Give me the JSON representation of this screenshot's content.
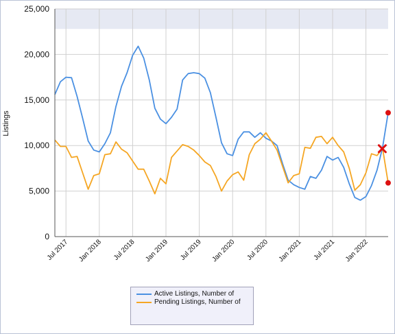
{
  "chart_data": {
    "type": "line",
    "title": "",
    "xlabel": "",
    "ylabel": "Listings",
    "ylim": [
      0,
      25000
    ],
    "yticks": [
      "0",
      "5,000",
      "10,000",
      "15,000",
      "20,000",
      "25,000"
    ],
    "yticks_values": [
      0,
      5000,
      10000,
      15000,
      20000,
      25000
    ],
    "xticks": [
      "Jul 2017",
      "Jan 2018",
      "Jul 2018",
      "Jan 2019",
      "Jul 2019",
      "Jan 2020",
      "Jul 2020",
      "Jan 2021",
      "Jul 2021",
      "Jan 2022"
    ],
    "start_month": "2017-05",
    "x": [
      "2017-05",
      "2017-06",
      "2017-07",
      "2017-08",
      "2017-09",
      "2017-10",
      "2017-11",
      "2017-12",
      "2018-01",
      "2018-02",
      "2018-03",
      "2018-04",
      "2018-05",
      "2018-06",
      "2018-07",
      "2018-08",
      "2018-09",
      "2018-10",
      "2018-11",
      "2018-12",
      "2019-01",
      "2019-02",
      "2019-03",
      "2019-04",
      "2019-05",
      "2019-06",
      "2019-07",
      "2019-08",
      "2019-09",
      "2019-10",
      "2019-11",
      "2019-12",
      "2020-01",
      "2020-02",
      "2020-03",
      "2020-04",
      "2020-05",
      "2020-06",
      "2020-07",
      "2020-08",
      "2020-09",
      "2020-10",
      "2020-11",
      "2020-12",
      "2021-01",
      "2021-02",
      "2021-03",
      "2021-04",
      "2021-05",
      "2021-06",
      "2021-07",
      "2021-08",
      "2021-09",
      "2021-10",
      "2021-11",
      "2021-12",
      "2022-01",
      "2022-02",
      "2022-03",
      "2022-04",
      "2022-05"
    ],
    "series": [
      {
        "name": "Active Listings, Number of",
        "color": "#4a90e2",
        "values": [
          15600,
          17000,
          17500,
          17450,
          15400,
          13000,
          10500,
          9500,
          9300,
          10200,
          11400,
          14300,
          16500,
          18000,
          19900,
          20900,
          19600,
          17200,
          14100,
          12900,
          12400,
          13100,
          14000,
          17200,
          17900,
          18000,
          17900,
          17400,
          15800,
          13100,
          10300,
          9100,
          8900,
          10700,
          11500,
          11500,
          10900,
          11400,
          10800,
          10500,
          10000,
          8000,
          6200,
          5700,
          5400,
          5200,
          6600,
          6400,
          7300,
          8800,
          8400,
          8700,
          7600,
          5800,
          4300,
          4000,
          4400,
          5600,
          7300,
          9800,
          13600
        ]
      },
      {
        "name": "Pending Listings, Number of",
        "color": "#f5a623",
        "values": [
          10600,
          9900,
          9900,
          8700,
          8800,
          7000,
          5200,
          6700,
          6900,
          9000,
          9100,
          10400,
          9600,
          9200,
          8300,
          7400,
          7400,
          6100,
          4700,
          6400,
          5800,
          8700,
          9400,
          10100,
          9900,
          9500,
          8900,
          8200,
          7800,
          6600,
          5000,
          6100,
          6800,
          7100,
          6200,
          9000,
          10200,
          10700,
          11400,
          10500,
          9500,
          7700,
          5900,
          6700,
          6900,
          9800,
          9700,
          10900,
          11000,
          10200,
          10900,
          10000,
          9300,
          7500,
          5100,
          5700,
          7000,
          9100,
          8900,
          9700,
          5900
        ]
      }
    ],
    "grid": true,
    "legend": "bottom-center"
  },
  "markers": {
    "end_point_color": "#dd1111",
    "cross_color": "#dd1111"
  },
  "colors": {
    "plot_background": "#ffffff",
    "top_band": "#e6e9f3",
    "grid": "#d0d0d0",
    "axis": "#555555"
  }
}
